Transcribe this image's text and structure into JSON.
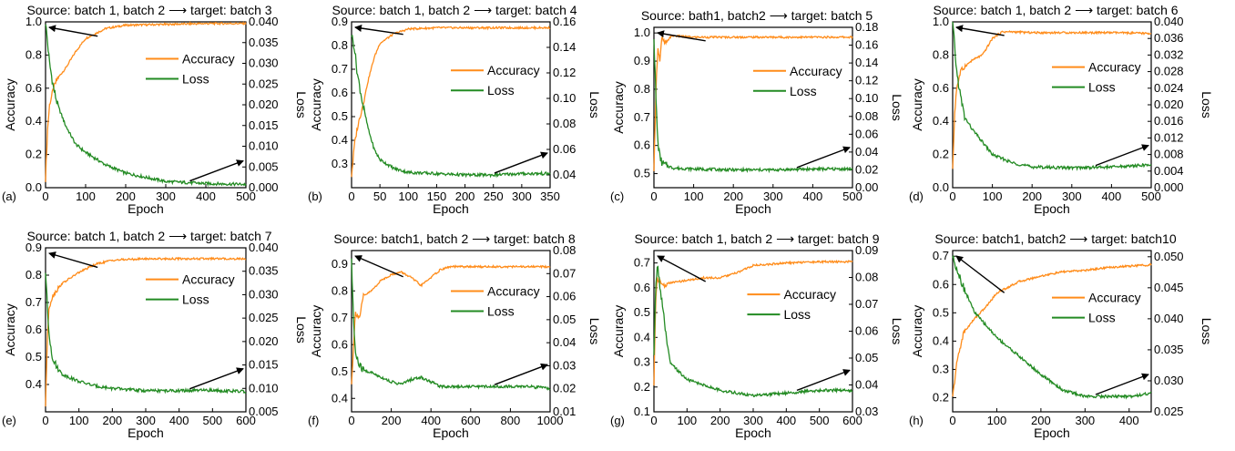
{
  "colors": {
    "accuracy": "#ff8c1a",
    "loss": "#238b23",
    "axis": "#000000",
    "arrow": "#000000"
  },
  "chart_data": [
    {
      "panel": "(a)",
      "type": "line",
      "title": "Source: batch 1, batch 2 ⟶ target: batch 3",
      "xlabel": "Epoch",
      "ylabel": "Accuracy",
      "y2label": "Loss",
      "xlim": [
        0,
        500
      ],
      "xticks": [
        "0",
        "100",
        "200",
        "300",
        "400",
        "500"
      ],
      "ylim": [
        0.0,
        1.0
      ],
      "yticks": [
        "0.0",
        "0.2",
        "0.4",
        "0.6",
        "0.8",
        "1.0"
      ],
      "y2lim": [
        0.0,
        0.04
      ],
      "y2ticks": [
        "0.000",
        "0.005",
        "0.010",
        "0.015",
        "0.020",
        "0.025",
        "0.030",
        "0.035",
        "0.040"
      ],
      "legend": "right",
      "legend_entries": [
        "Accuracy",
        "Loss"
      ],
      "series": [
        {
          "name": "Accuracy",
          "axis": "left",
          "x": [
            0,
            5,
            10,
            20,
            30,
            50,
            75,
            100,
            150,
            200,
            300,
            400,
            500
          ],
          "y": [
            0.05,
            0.35,
            0.5,
            0.6,
            0.66,
            0.72,
            0.82,
            0.9,
            0.96,
            0.98,
            0.985,
            0.99,
            0.99
          ]
        },
        {
          "name": "Loss",
          "axis": "right",
          "x": [
            0,
            5,
            10,
            20,
            30,
            50,
            75,
            100,
            150,
            200,
            300,
            400,
            500
          ],
          "y": [
            0.04,
            0.035,
            0.03,
            0.024,
            0.02,
            0.015,
            0.0105,
            0.0085,
            0.0055,
            0.0035,
            0.0015,
            0.001,
            0.0008
          ]
        }
      ]
    },
    {
      "panel": "(b)",
      "type": "line",
      "title": "Source: batch 1, batch 2 ⟶ target: batch 4",
      "xlabel": "Epoch",
      "ylabel": "Accuracy",
      "y2label": "Loss",
      "xlim": [
        0,
        350
      ],
      "xticks": [
        "0",
        "50",
        "100",
        "150",
        "200",
        "250",
        "300",
        "350"
      ],
      "ylim": [
        0.2,
        0.9
      ],
      "yticks": [
        "0.3",
        "0.4",
        "0.5",
        "0.6",
        "0.7",
        "0.8",
        "0.9"
      ],
      "y2lim": [
        0.03,
        0.16
      ],
      "y2ticks": [
        "0.04",
        "0.06",
        "0.08",
        "0.10",
        "0.12",
        "0.14",
        "0.16"
      ],
      "legend": "right",
      "legend_entries": [
        "Accuracy",
        "Loss"
      ],
      "series": [
        {
          "name": "Accuracy",
          "axis": "left",
          "x": [
            0,
            5,
            10,
            20,
            30,
            40,
            50,
            75,
            100,
            150,
            200,
            250,
            300,
            350
          ],
          "y": [
            0.25,
            0.38,
            0.45,
            0.55,
            0.66,
            0.75,
            0.81,
            0.85,
            0.87,
            0.875,
            0.875,
            0.875,
            0.875,
            0.875
          ]
        },
        {
          "name": "Loss",
          "axis": "right",
          "x": [
            0,
            5,
            10,
            20,
            30,
            40,
            50,
            75,
            100,
            150,
            200,
            250,
            300,
            350
          ],
          "y": [
            0.15,
            0.14,
            0.12,
            0.095,
            0.075,
            0.06,
            0.052,
            0.045,
            0.042,
            0.041,
            0.04,
            0.04,
            0.041,
            0.041
          ]
        }
      ]
    },
    {
      "panel": "(c)",
      "type": "line",
      "title": "Source: bath1, batch2 ⟶ target: batch 5",
      "xlabel": "Epoch",
      "ylabel": "Accuracy",
      "y2label": "Loss",
      "xlim": [
        0,
        500
      ],
      "xticks": [
        "0",
        "100",
        "200",
        "300",
        "400",
        "500"
      ],
      "ylim": [
        0.45,
        1.02
      ],
      "yticks": [
        "0.5",
        "0.6",
        "0.7",
        "0.8",
        "0.9",
        "1.0"
      ],
      "y2lim": [
        0.0,
        0.18
      ],
      "y2ticks": [
        "0.00",
        "0.02",
        "0.04",
        "0.06",
        "0.08",
        "0.10",
        "0.12",
        "0.14",
        "0.16",
        "0.18"
      ],
      "legend": "right",
      "legend_entries": [
        "Accuracy",
        "Loss"
      ],
      "series": [
        {
          "name": "Accuracy",
          "axis": "left",
          "x": [
            0,
            5,
            10,
            15,
            20,
            30,
            40,
            50,
            100,
            200,
            300,
            400,
            500
          ],
          "y": [
            0.5,
            0.8,
            0.95,
            0.9,
            0.98,
            0.96,
            0.985,
            0.99,
            0.985,
            0.985,
            0.985,
            0.985,
            0.985
          ]
        },
        {
          "name": "Loss",
          "axis": "right",
          "x": [
            0,
            5,
            10,
            15,
            20,
            30,
            50,
            100,
            200,
            300,
            400,
            500
          ],
          "y": [
            0.17,
            0.1,
            0.05,
            0.035,
            0.028,
            0.025,
            0.022,
            0.021,
            0.02,
            0.02,
            0.021,
            0.021
          ]
        }
      ]
    },
    {
      "panel": "(d)",
      "type": "line",
      "title": "Source: batch 1, batch 2 ⟶ target: batch 6",
      "xlabel": "Epoch",
      "ylabel": "Accuracy",
      "y2label": "Loss",
      "xlim": [
        0,
        500
      ],
      "xticks": [
        "0",
        "100",
        "200",
        "300",
        "400",
        "500"
      ],
      "ylim": [
        0.0,
        1.0
      ],
      "yticks": [
        "0.0",
        "0.2",
        "0.4",
        "0.6",
        "0.8",
        "1.0"
      ],
      "y2lim": [
        0.0,
        0.04
      ],
      "y2ticks": [
        "0.000",
        "0.004",
        "0.008",
        "0.012",
        "0.016",
        "0.020",
        "0.024",
        "0.028",
        "0.032",
        "0.036",
        "0.040"
      ],
      "legend": "right",
      "legend_entries": [
        "Accuracy",
        "Loss"
      ],
      "series": [
        {
          "name": "Accuracy",
          "axis": "left",
          "x": [
            0,
            5,
            10,
            20,
            30,
            50,
            75,
            100,
            125,
            150,
            200,
            300,
            400,
            500
          ],
          "y": [
            0.1,
            0.45,
            0.6,
            0.7,
            0.73,
            0.77,
            0.8,
            0.9,
            0.94,
            0.94,
            0.935,
            0.935,
            0.935,
            0.93
          ]
        },
        {
          "name": "Loss",
          "axis": "right",
          "x": [
            0,
            5,
            10,
            20,
            30,
            50,
            75,
            100,
            150,
            200,
            300,
            400,
            500
          ],
          "y": [
            0.04,
            0.034,
            0.028,
            0.022,
            0.017,
            0.014,
            0.011,
            0.008,
            0.006,
            0.005,
            0.0048,
            0.005,
            0.0055
          ]
        }
      ]
    },
    {
      "panel": "(e)",
      "type": "line",
      "title": "Source: batch 1, batch 2 ⟶ target: batch 7",
      "xlabel": "Epoch",
      "ylabel": "Accuracy",
      "y2label": "Loss",
      "xlim": [
        0,
        600
      ],
      "xticks": [
        "0",
        "100",
        "200",
        "300",
        "400",
        "500",
        "600"
      ],
      "ylim": [
        0.3,
        0.9
      ],
      "yticks": [
        "0.4",
        "0.5",
        "0.6",
        "0.7",
        "0.8",
        "0.9"
      ],
      "y2lim": [
        0.005,
        0.04
      ],
      "y2ticks": [
        "0.005",
        "0.010",
        "0.015",
        "0.020",
        "0.025",
        "0.030",
        "0.035",
        "0.040"
      ],
      "legend": "right",
      "legend_entries": [
        "Accuracy",
        "Loss"
      ],
      "series": [
        {
          "name": "Accuracy",
          "axis": "left",
          "x": [
            0,
            5,
            10,
            20,
            30,
            50,
            100,
            150,
            200,
            300,
            400,
            500,
            600
          ],
          "y": [
            0.32,
            0.55,
            0.68,
            0.72,
            0.74,
            0.77,
            0.81,
            0.84,
            0.855,
            0.86,
            0.86,
            0.86,
            0.86
          ]
        },
        {
          "name": "Loss",
          "axis": "right",
          "x": [
            0,
            5,
            10,
            20,
            30,
            50,
            100,
            150,
            200,
            300,
            400,
            500,
            600
          ],
          "y": [
            0.035,
            0.028,
            0.022,
            0.017,
            0.015,
            0.013,
            0.0115,
            0.0105,
            0.01,
            0.0095,
            0.0095,
            0.0096,
            0.0093
          ]
        }
      ]
    },
    {
      "panel": "(f)",
      "type": "line",
      "title": "Source: batch1, batch 2 ⟶ target: batch 8",
      "xlabel": "Epoch",
      "ylabel": "Accuracy",
      "y2label": "Loss",
      "xlim": [
        0,
        1000
      ],
      "xticks": [
        "0",
        "200",
        "400",
        "600",
        "800",
        "1000"
      ],
      "ylim": [
        0.35,
        0.95
      ],
      "yticks": [
        "0.4",
        "0.5",
        "0.6",
        "0.7",
        "0.8",
        "0.9"
      ],
      "y2lim": [
        0.01,
        0.08
      ],
      "y2ticks": [
        "0.01",
        "0.02",
        "0.03",
        "0.04",
        "0.05",
        "0.06",
        "0.07",
        "0.08"
      ],
      "legend": "right",
      "legend_entries": [
        "Accuracy",
        "Loss"
      ],
      "series": [
        {
          "name": "Accuracy",
          "axis": "left",
          "x": [
            0,
            10,
            20,
            40,
            60,
            100,
            150,
            200,
            250,
            300,
            350,
            400,
            450,
            500,
            600,
            700,
            800,
            900,
            1000
          ],
          "y": [
            0.45,
            0.6,
            0.72,
            0.7,
            0.78,
            0.8,
            0.84,
            0.86,
            0.87,
            0.85,
            0.82,
            0.85,
            0.88,
            0.89,
            0.89,
            0.89,
            0.89,
            0.89,
            0.89
          ]
        },
        {
          "name": "Loss",
          "axis": "right",
          "x": [
            0,
            10,
            20,
            40,
            60,
            100,
            150,
            200,
            250,
            300,
            350,
            400,
            450,
            500,
            600,
            700,
            800,
            900,
            1000
          ],
          "y": [
            0.075,
            0.05,
            0.035,
            0.03,
            0.028,
            0.027,
            0.025,
            0.023,
            0.022,
            0.024,
            0.025,
            0.023,
            0.021,
            0.021,
            0.021,
            0.021,
            0.021,
            0.021,
            0.02
          ]
        }
      ]
    },
    {
      "panel": "(g)",
      "type": "line",
      "title": "Source: batch 1, batch 2 ⟶ target: batch 9",
      "xlabel": "Epoch",
      "ylabel": "Accuracy",
      "y2label": "Loss",
      "xlim": [
        0,
        600
      ],
      "xticks": [
        "0",
        "100",
        "200",
        "300",
        "400",
        "500",
        "600"
      ],
      "ylim": [
        0.1,
        0.75
      ],
      "yticks": [
        "0.1",
        "0.2",
        "0.3",
        "0.4",
        "0.5",
        "0.6",
        "0.7"
      ],
      "y2lim": [
        0.03,
        0.09
      ],
      "y2ticks": [
        "0.03",
        "0.04",
        "0.05",
        "0.06",
        "0.07",
        "0.08",
        "0.09"
      ],
      "legend": "right",
      "legend_entries": [
        "Accuracy",
        "Loss"
      ],
      "series": [
        {
          "name": "Accuracy",
          "axis": "left",
          "x": [
            0,
            5,
            10,
            20,
            30,
            50,
            100,
            150,
            200,
            250,
            300,
            400,
            500,
            600
          ],
          "y": [
            0.2,
            0.55,
            0.64,
            0.62,
            0.61,
            0.62,
            0.63,
            0.64,
            0.64,
            0.66,
            0.69,
            0.7,
            0.705,
            0.705
          ]
        },
        {
          "name": "Loss",
          "axis": "right",
          "x": [
            0,
            5,
            10,
            20,
            30,
            40,
            50,
            100,
            150,
            200,
            250,
            300,
            400,
            500,
            600
          ],
          "y": [
            0.05,
            0.075,
            0.085,
            0.075,
            0.065,
            0.055,
            0.048,
            0.042,
            0.04,
            0.038,
            0.037,
            0.036,
            0.037,
            0.038,
            0.038
          ]
        }
      ]
    },
    {
      "panel": "(h)",
      "type": "line",
      "title": "Source: batch1, batch2 ⟶ target: batch10",
      "xlabel": "Epoch",
      "ylabel": "Accuracy",
      "y2label": "Loss",
      "xlim": [
        0,
        450
      ],
      "xticks": [
        "0",
        "100",
        "200",
        "300",
        "400"
      ],
      "ylim": [
        0.15,
        0.72
      ],
      "yticks": [
        "0.2",
        "0.3",
        "0.4",
        "0.5",
        "0.6",
        "0.7"
      ],
      "y2lim": [
        0.025,
        0.051
      ],
      "y2ticks": [
        "0.025",
        "0.030",
        "0.035",
        "0.040",
        "0.045",
        "0.050"
      ],
      "legend": "right",
      "legend_entries": [
        "Accuracy",
        "Loss"
      ],
      "series": [
        {
          "name": "Accuracy",
          "axis": "left",
          "x": [
            0,
            10,
            25,
            50,
            75,
            100,
            150,
            200,
            250,
            300,
            350,
            400,
            450
          ],
          "y": [
            0.2,
            0.33,
            0.43,
            0.48,
            0.52,
            0.57,
            0.61,
            0.63,
            0.645,
            0.65,
            0.66,
            0.665,
            0.67
          ]
        },
        {
          "name": "Loss",
          "axis": "right",
          "x": [
            0,
            10,
            25,
            50,
            75,
            100,
            150,
            200,
            250,
            300,
            350,
            400,
            450
          ],
          "y": [
            0.05,
            0.048,
            0.045,
            0.041,
            0.039,
            0.037,
            0.034,
            0.031,
            0.0285,
            0.0275,
            0.0275,
            0.0275,
            0.028
          ]
        }
      ]
    }
  ]
}
